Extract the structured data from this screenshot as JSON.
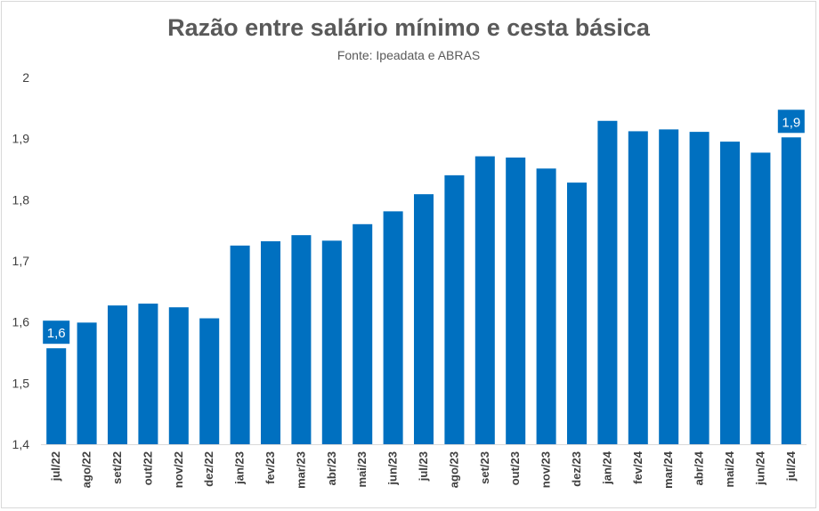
{
  "colors": {
    "bar": "#0070c0",
    "text": "#595959",
    "axis": "#d9d9d9"
  },
  "chart_data": {
    "type": "bar",
    "title": "Razão entre salário mínimo e cesta básica",
    "subtitle": "Fonte: Ipeadata e ABRAS",
    "xlabel": "",
    "ylabel": "",
    "ylim": [
      1.4,
      2.0
    ],
    "yticks": [
      "1,4",
      "1,5",
      "1,6",
      "1,7",
      "1,8",
      "1,9",
      "2"
    ],
    "grid": false,
    "categories": [
      "jul/22",
      "ago/22",
      "set/22",
      "out/22",
      "nov/22",
      "dez/22",
      "jan/23",
      "fev/23",
      "mar/23",
      "abr/23",
      "mai/23",
      "jun/23",
      "jul/23",
      "ago/23",
      "set/23",
      "out/23",
      "nov/23",
      "dez/23",
      "jan/24",
      "fev/24",
      "mar/24",
      "abr/24",
      "mai/24",
      "jun/24",
      "jul/24"
    ],
    "values": [
      1.557,
      1.599,
      1.627,
      1.63,
      1.624,
      1.606,
      1.725,
      1.732,
      1.742,
      1.733,
      1.76,
      1.781,
      1.809,
      1.84,
      1.871,
      1.869,
      1.851,
      1.828,
      1.929,
      1.912,
      1.915,
      1.911,
      1.895,
      1.877,
      1.902
    ],
    "data_labels": [
      {
        "index": 0,
        "text": "1,6"
      },
      {
        "index": 24,
        "text": "1,9"
      }
    ]
  }
}
